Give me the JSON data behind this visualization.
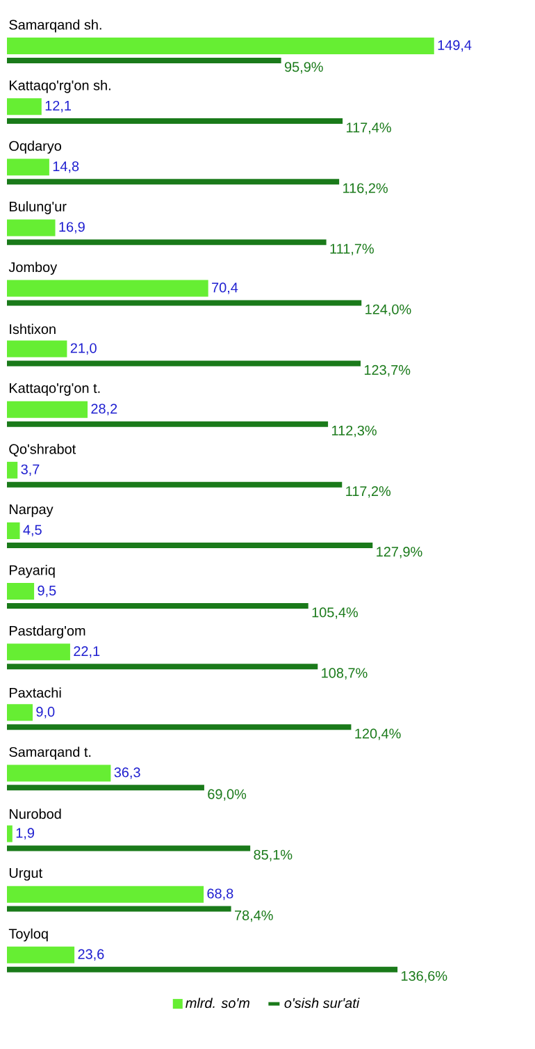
{
  "chart_data": {
    "type": "bar",
    "orientation": "horizontal",
    "legend": "bottom",
    "categories": [
      "Samarqand sh.",
      "Kattaqo'rg'on sh.",
      "Oqdaryo",
      "Bulung'ur",
      "Jomboy",
      "Ishtixon",
      "Kattaqo'rg'on t.",
      "Qo'shrabot",
      "Narpay",
      "Payariq",
      "Pastdarg'om",
      "Paxtachi",
      "Samarqand t.",
      "Nurobod",
      "Urgut",
      "Toyloq"
    ],
    "series": [
      {
        "name": "mlrd. so'm",
        "color": "#66ee33",
        "values": [
          149.4,
          12.1,
          14.8,
          16.9,
          70.4,
          21.0,
          28.2,
          3.7,
          4.5,
          9.5,
          22.1,
          9.0,
          36.3,
          1.9,
          68.8,
          23.6
        ],
        "value_labels": [
          "149,4",
          "12,1",
          "14,8",
          "16,9",
          "70,4",
          "21,0",
          "28,2",
          "3,7",
          "4,5",
          "9,5",
          "22,1",
          "9,0",
          "36,3",
          "1,9",
          "68,8",
          "23,6"
        ]
      },
      {
        "name": "o'sish sur'ati",
        "color": "#1a7a1a",
        "values": [
          95.9,
          117.4,
          116.2,
          111.7,
          124.0,
          123.7,
          112.3,
          117.2,
          127.9,
          105.4,
          108.7,
          120.4,
          69.0,
          85.1,
          78.4,
          136.6
        ],
        "value_labels": [
          "95,9%",
          "117,4%",
          "116,2%",
          "111,7%",
          "124,0%",
          "123,7%",
          "112,3%",
          "117,2%",
          "127,9%",
          "105,4%",
          "108,7%",
          "120,4%",
          "69,0%",
          "85,1%",
          "78,4%",
          "136,6%"
        ]
      }
    ]
  }
}
